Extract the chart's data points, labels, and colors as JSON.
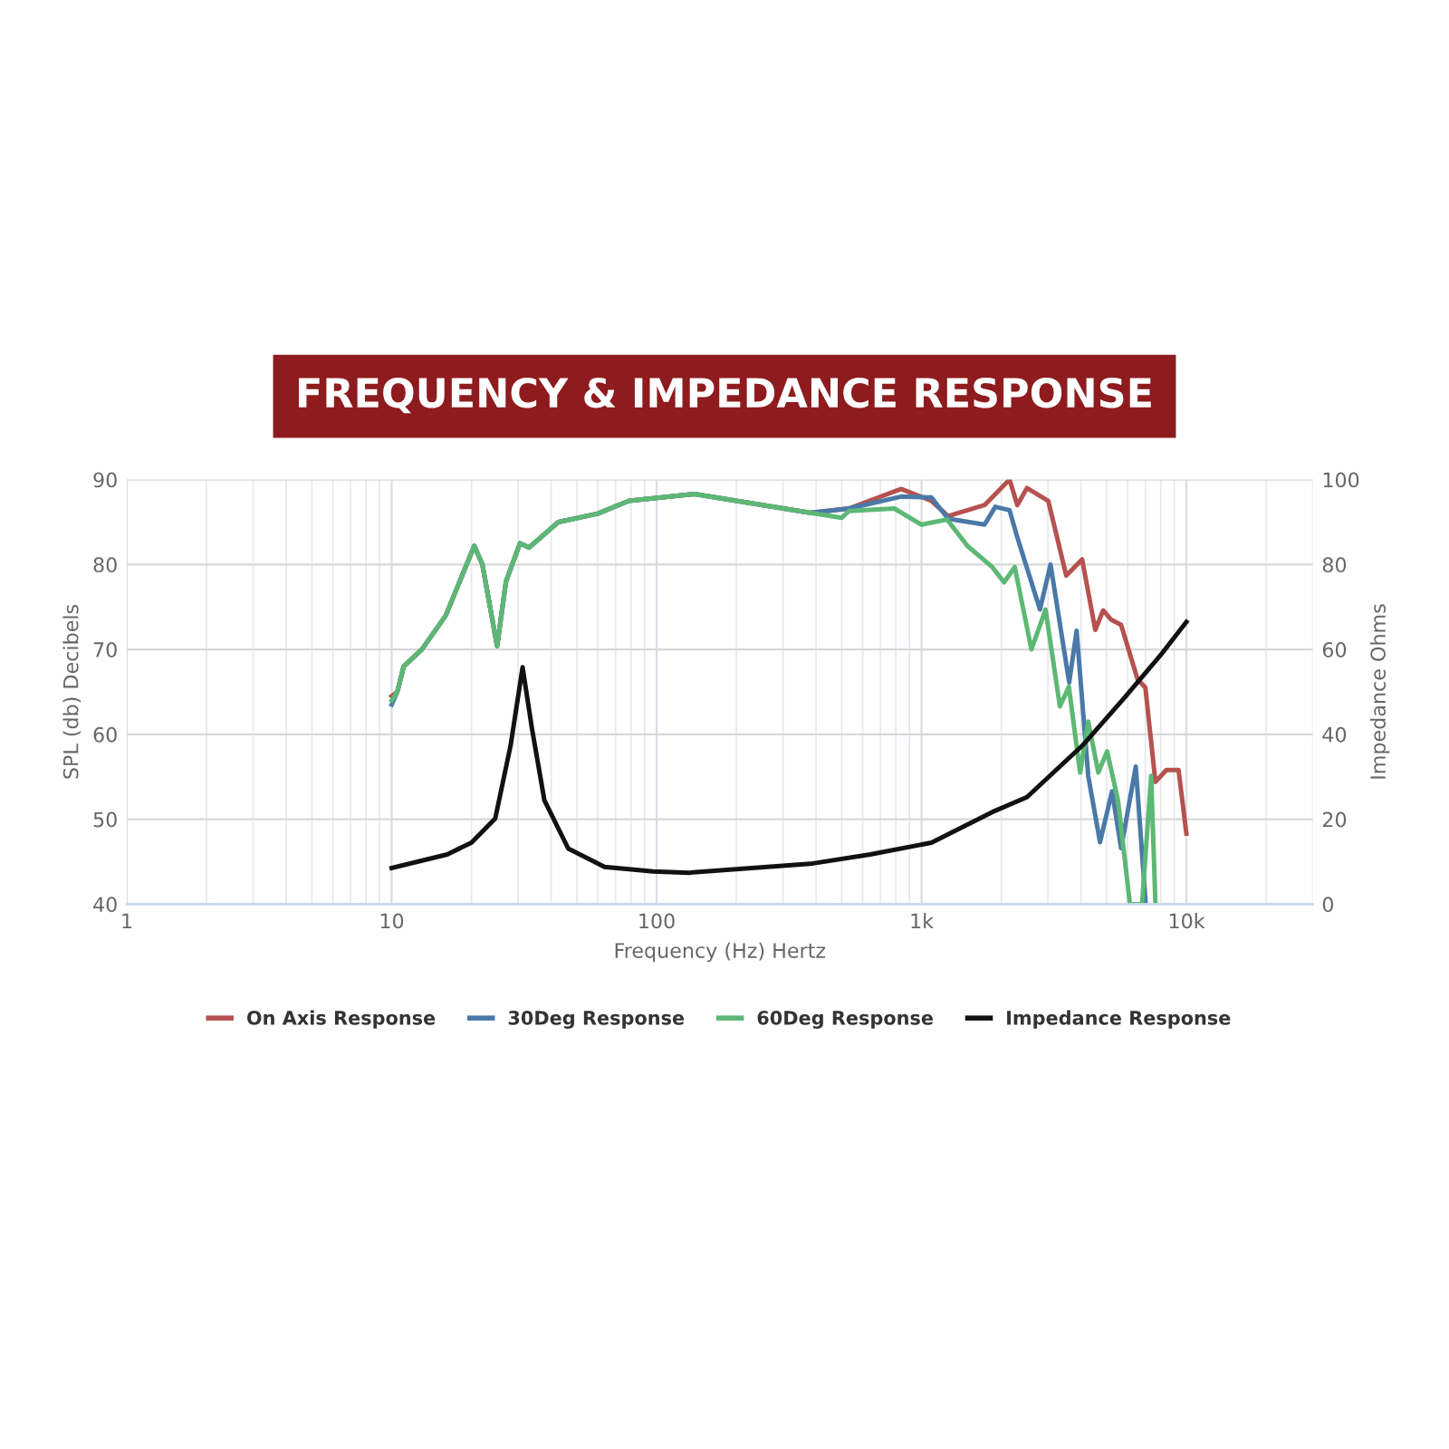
{
  "chart_data": {
    "type": "line",
    "title": "FREQUENCY & IMPEDANCE RESPONSE",
    "xlabel": "Frequency (Hz) Hertz",
    "ylabel": "SPL (db) Decibels",
    "y2label": "Impedance Ohms",
    "log": "x",
    "grid": true,
    "legend": "bottom",
    "marker": "none",
    "line_style": "solid",
    "xlim": [
      1,
      30000
    ],
    "xticks": [
      1,
      10,
      100,
      {
        "value": 1000,
        "label": "1k"
      },
      {
        "value": 10000,
        "label": "10k"
      }
    ],
    "ylim": [
      40,
      90
    ],
    "yticks": [
      40,
      50,
      60,
      70,
      80,
      90
    ],
    "y2lim": [
      0,
      100
    ],
    "y2ticks": [
      0,
      20,
      40,
      60,
      80,
      100
    ],
    "series": [
      {
        "name": "On Axis Response",
        "color": "#b5524f",
        "x": [
          10,
          10.5,
          11.1,
          13,
          16,
          20.5,
          22,
          25,
          27,
          30.5,
          33,
          42.6,
          60,
          78.7,
          139,
          380,
          532,
          838,
          1090,
          1260,
          1730,
          2150,
          2300,
          2500,
          3010,
          3520,
          4040,
          4530,
          4850,
          5200,
          5670,
          6540,
          7000,
          7640,
          8400,
          9340,
          10000
        ],
        "values": [
          64.5,
          65,
          68,
          70,
          74,
          82.2,
          80,
          70.4,
          78,
          82.5,
          82,
          85,
          86,
          87.5,
          88.3,
          86.1,
          86.6,
          88.9,
          87.5,
          85.7,
          87,
          90,
          87,
          89,
          87.5,
          78.7,
          80.6,
          72.3,
          74.6,
          73.5,
          72.9,
          66.5,
          65.5,
          54.4,
          55.8,
          55.8,
          48.3
        ]
      },
      {
        "name": "30Deg Response",
        "color": "#4a79a8",
        "x": [
          10,
          10.5,
          11.1,
          13,
          16,
          20.5,
          22,
          25,
          27,
          30.5,
          33,
          42.6,
          60,
          78.7,
          139,
          380,
          532,
          838,
          1090,
          1260,
          1730,
          1900,
          2150,
          2300,
          2800,
          3070,
          3610,
          3850,
          4260,
          4720,
          5240,
          5670,
          6440,
          7020
        ],
        "values": [
          63.5,
          65,
          68,
          70,
          74,
          82.2,
          80,
          70.4,
          78,
          82.5,
          82,
          85,
          86,
          87.5,
          88.3,
          86.1,
          86.6,
          88,
          87.9,
          85.4,
          84.7,
          86.8,
          86.4,
          83.2,
          74.7,
          80,
          66.1,
          72.2,
          55.1,
          47.3,
          53.3,
          46.6,
          56.2,
          40
        ]
      },
      {
        "name": "60Deg Response",
        "color": "#5cb874",
        "x": [
          10,
          10.5,
          11.1,
          13,
          16,
          20.5,
          22,
          25,
          27,
          30.5,
          33,
          42.6,
          60,
          78.7,
          139,
          380,
          500,
          532,
          790,
          1000,
          1250,
          1490,
          1850,
          2050,
          2250,
          2600,
          2940,
          3330,
          3600,
          3970,
          4260,
          4650,
          5020,
          5520,
          6120,
          6800,
          7360,
          7640
        ],
        "values": [
          64,
          65,
          68,
          70,
          74,
          82.2,
          80,
          70.4,
          78,
          82.5,
          82,
          85,
          86,
          87.5,
          88.3,
          86.1,
          85.5,
          86.3,
          86.6,
          84.7,
          85.3,
          82.2,
          79.7,
          77.9,
          79.7,
          70,
          74.7,
          63.3,
          65.6,
          55.5,
          61.5,
          55.5,
          58,
          52.2,
          40,
          40,
          55.1,
          40
        ]
      },
      {
        "name": "Impedance Response",
        "color": "#111111",
        "axis": "y2",
        "x": [
          10,
          16.2,
          20,
          24.6,
          28.1,
          31.2,
          33.8,
          37.7,
          46.4,
          63.6,
          97,
          132,
          380,
          640,
          1090,
          1850,
          2500,
          4040,
          5850,
          8000,
          10000
        ],
        "values": [
          8.5,
          11.7,
          14.5,
          20.2,
          37.3,
          55.8,
          41.6,
          24.5,
          13.1,
          8.8,
          7.7,
          7.4,
          9.5,
          11.7,
          14.5,
          21.7,
          25.2,
          37.3,
          48.7,
          58.7,
          66.5
        ]
      }
    ]
  }
}
